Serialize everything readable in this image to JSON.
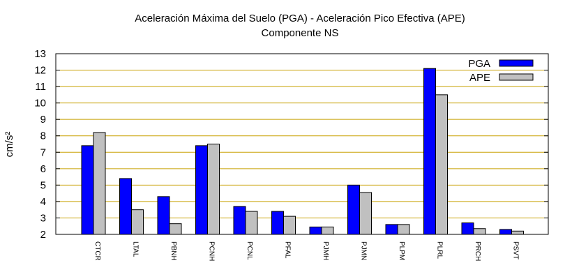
{
  "chart_data": {
    "type": "bar",
    "title": "Aceleración Máxima del Suelo (PGA) -  Aceleración Pico Efectiva (APE)",
    "subtitle": "Componente NS",
    "ylabel": "cm/s²",
    "ylim": [
      2,
      13
    ],
    "yticks": [
      "2",
      "3",
      "4",
      "5",
      "6",
      "7",
      "8",
      "9",
      "10",
      "11",
      "12",
      "13"
    ],
    "grid": true,
    "legend_position": "top-right",
    "categories": [
      "CTCR",
      "LTAL",
      "PBNH",
      "PCNH",
      "PCNL",
      "PFAL",
      "PJMH",
      "PJMN",
      "PLPM",
      "PLRL",
      "PRCH",
      "PSVT"
    ],
    "series": [
      {
        "name": "PGA",
        "color": "#0000ff",
        "values": [
          7.4,
          5.4,
          4.3,
          7.4,
          3.7,
          3.4,
          2.45,
          5.0,
          2.6,
          12.1,
          2.7,
          2.3
        ]
      },
      {
        "name": "APE",
        "color": "#c0c0c0",
        "values": [
          8.2,
          3.5,
          2.65,
          7.5,
          3.4,
          3.1,
          2.45,
          4.55,
          2.6,
          10.5,
          2.35,
          2.2
        ]
      }
    ],
    "grid_color": "#c8a000"
  }
}
